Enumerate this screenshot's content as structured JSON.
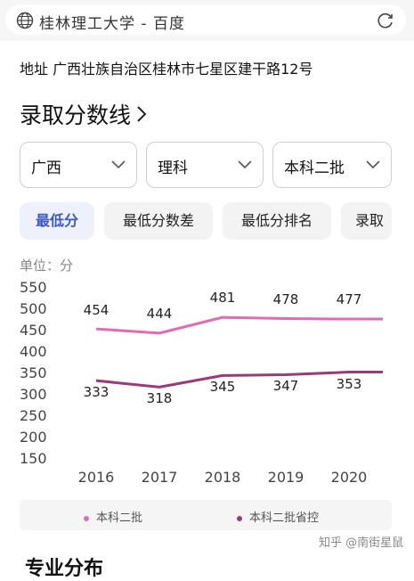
{
  "browser": {
    "title": "桂林理工大学 - 百度",
    "globe_icon": "globe-icon",
    "reload_icon": "reload-icon"
  },
  "address": "地址  广西壮族自治区桂林市七星区建干路12号",
  "section": {
    "title": "录取分数线",
    "chevron_icon": "chevron-right-icon"
  },
  "filters": [
    {
      "value": "广西"
    },
    {
      "value": "理科"
    },
    {
      "value": "本科二批"
    }
  ],
  "tabs": [
    {
      "label": "最低分",
      "active": true
    },
    {
      "label": "最低分数差",
      "active": false
    },
    {
      "label": "最低分排名",
      "active": false
    },
    {
      "label": "录取",
      "active": false
    }
  ],
  "unit": "单位：分",
  "chart_data": {
    "type": "line",
    "x": [
      "2016",
      "2017",
      "2018",
      "2019",
      "2020"
    ],
    "ylim": [
      150,
      550
    ],
    "yticks": [
      "550",
      "500",
      "450",
      "400",
      "350",
      "300",
      "250",
      "200",
      "150"
    ],
    "series": [
      {
        "name": "本科二批",
        "color": "#e06cb1",
        "values": [
          454,
          444,
          481,
          478,
          477
        ],
        "labels": [
          "454",
          "444",
          "481",
          "478",
          "477"
        ]
      },
      {
        "name": "本科二批省控",
        "color": "#9b3a7a",
        "values": [
          333,
          318,
          345,
          347,
          353
        ],
        "labels": [
          "333",
          "318",
          "345",
          "347",
          "353"
        ]
      }
    ]
  },
  "watermark": "知乎 @南街星鼠",
  "next_heading": "专业分布"
}
